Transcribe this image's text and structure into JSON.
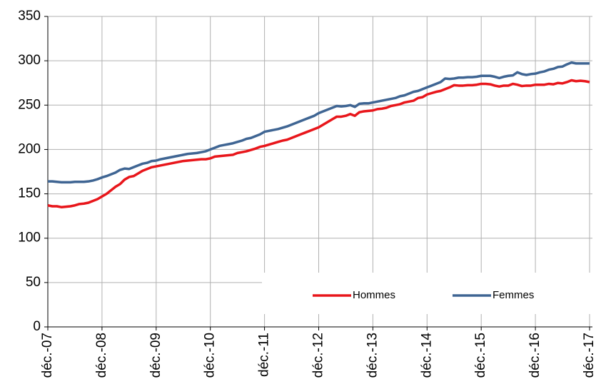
{
  "chart_data": {
    "type": "line",
    "categories": [
      "déc.-07",
      null,
      null,
      null,
      null,
      null,
      null,
      null,
      null,
      null,
      null,
      null,
      "déc.-08",
      null,
      null,
      null,
      null,
      null,
      null,
      null,
      null,
      null,
      null,
      null,
      "déc.-09",
      null,
      null,
      null,
      null,
      null,
      null,
      null,
      null,
      null,
      null,
      null,
      "déc.-10",
      null,
      null,
      null,
      null,
      null,
      null,
      null,
      null,
      null,
      null,
      null,
      "déc.-11",
      null,
      null,
      null,
      null,
      null,
      null,
      null,
      null,
      null,
      null,
      null,
      "déc.-12",
      null,
      null,
      null,
      null,
      null,
      null,
      null,
      null,
      null,
      null,
      null,
      "déc.-13",
      null,
      null,
      null,
      null,
      null,
      null,
      null,
      null,
      null,
      null,
      null,
      "déc.-14",
      null,
      null,
      null,
      null,
      null,
      null,
      null,
      null,
      null,
      null,
      null,
      "déc.-15",
      null,
      null,
      null,
      null,
      null,
      null,
      null,
      null,
      null,
      null,
      null,
      "déc.-16",
      null,
      null,
      null,
      null,
      null,
      null,
      null,
      null,
      null,
      null,
      null,
      "déc.-17"
    ],
    "series": [
      {
        "name": "Hommes",
        "color": "#e8161b",
        "values": [
          137,
          136,
          136,
          135,
          135.5,
          136,
          137,
          138.5,
          139,
          140,
          142,
          144,
          147,
          150,
          154,
          158,
          161,
          166,
          169,
          170,
          173,
          176,
          178,
          180,
          181,
          182,
          183,
          184,
          185,
          186,
          187,
          187.5,
          188,
          188.5,
          189,
          189,
          190,
          192,
          192.5,
          193,
          193.5,
          194,
          196,
          197,
          198,
          199.5,
          201,
          203,
          204,
          205.5,
          207,
          208.5,
          210,
          211,
          213,
          215,
          217,
          219,
          221,
          223,
          225,
          228,
          231,
          234,
          237,
          237,
          238,
          240,
          238,
          242,
          243,
          243.5,
          244,
          245.5,
          246,
          247,
          249,
          250,
          251,
          253,
          254,
          255,
          258,
          259,
          262,
          263.5,
          265,
          266,
          268,
          270,
          272.5,
          272,
          272,
          272.5,
          272.5,
          273,
          274,
          274,
          273.5,
          272,
          271,
          272,
          272,
          274,
          273,
          271.5,
          272,
          272,
          273,
          273,
          273,
          274,
          273.5,
          275,
          274.5,
          276,
          278,
          277,
          277.5,
          277,
          276
        ]
      },
      {
        "name": "Femmes",
        "color": "#3f6593",
        "values": [
          164,
          164,
          163.5,
          163,
          163,
          163,
          163.5,
          163.5,
          163.5,
          164,
          165,
          166.5,
          168.5,
          170,
          172,
          174,
          177,
          178.5,
          178,
          180,
          182,
          184,
          185,
          187,
          187.5,
          189,
          190,
          191,
          192,
          193,
          194,
          195,
          195.5,
          196,
          197,
          198,
          200,
          202,
          204,
          205,
          206,
          207,
          208.5,
          210,
          212,
          213,
          215,
          217,
          220,
          221,
          222,
          223,
          224.5,
          226,
          228,
          230,
          232,
          234,
          236,
          238,
          241,
          243,
          245,
          247,
          249,
          248.5,
          249,
          250,
          248,
          251.5,
          252,
          252,
          253,
          254,
          255,
          256,
          257,
          258,
          260,
          261,
          263,
          265,
          266,
          268,
          270,
          272,
          274,
          276,
          280,
          279.5,
          280,
          281,
          281,
          281.5,
          281.5,
          282,
          283,
          283,
          283,
          282,
          280.5,
          282,
          283,
          283.5,
          287,
          285,
          284,
          285,
          285.5,
          287,
          288,
          290,
          291,
          293,
          293.5,
          296,
          298,
          297,
          297,
          297,
          297
        ]
      }
    ],
    "ylim": [
      0,
      350
    ],
    "yticks": [
      0,
      50,
      100,
      150,
      200,
      250,
      300,
      350
    ],
    "grid": true,
    "legend": "bottom"
  }
}
